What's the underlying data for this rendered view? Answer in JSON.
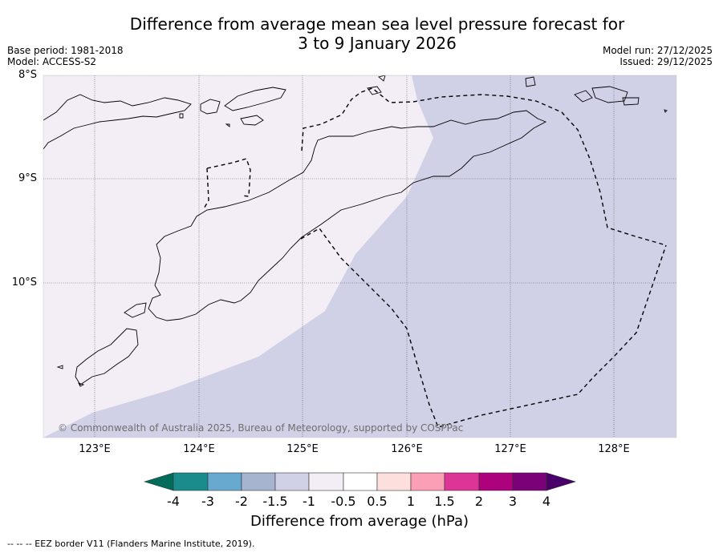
{
  "header": {
    "title_line1": "Difference from average mean sea level pressure forecast for",
    "title_line2": "3 to 9 January 2026",
    "base_period": "Base period: 1981-2018",
    "model": "Model: ACCESS-S2",
    "model_run": "Model run: 27/12/2025",
    "issued": "Issued: 29/12/2025"
  },
  "map": {
    "lat_labels": [
      "8°S",
      "9°S",
      "10°S"
    ],
    "lon_labels": [
      "123°E",
      "124°E",
      "125°E",
      "126°E",
      "127°E",
      "128°E"
    ],
    "extent": {
      "lon_min": 122.5,
      "lon_max": 128.6,
      "lat_min": -11.5,
      "lat_max": -8.0
    },
    "grid": true,
    "copyright": "© Commonwealth of Australia 2025, Bureau of Meteorology, supported by COSPPac",
    "regions": [
      {
        "band": "-1 to -0.5",
        "color": "#f3eef6"
      },
      {
        "band": "-1.5 to -1",
        "color": "#d0d1e6"
      }
    ]
  },
  "colorbar": {
    "label": "Difference from average (hPa)",
    "ticks": [
      "-4",
      "-3",
      "-2",
      "-1.5",
      "-1",
      "-0.5",
      "0.5",
      "1",
      "1.5",
      "2",
      "3",
      "4"
    ],
    "colors": [
      "#1b8c8c",
      "#67a9cf",
      "#a6b4d0",
      "#d0d1e6",
      "#f3eef6",
      "#ffffff",
      "#fde0dd",
      "#fa9fb5",
      "#dd3497",
      "#ae017e",
      "#7a0177"
    ],
    "under_color": "#016c59",
    "over_color": "#49006a"
  },
  "footnote": "-- -- -- EEZ border V11 (Flanders Marine Institute, 2019)."
}
